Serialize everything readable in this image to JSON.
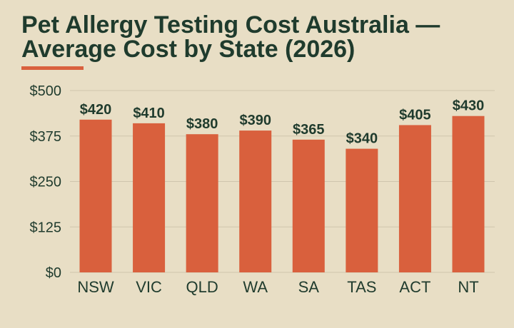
{
  "title_lines": [
    "Pet Allergy Testing Cost Australia —",
    "Average Cost by State (2026)"
  ],
  "colors": {
    "background": "#e8dec5",
    "bar": "#d9603d",
    "text": "#1f3b2d",
    "grid": "#cfc5ad",
    "accent": "#d9603d"
  },
  "chart_data": {
    "type": "bar",
    "title": "Pet Allergy Testing Cost Australia — Average Cost by State (2026)",
    "categories": [
      "NSW",
      "VIC",
      "QLD",
      "WA",
      "SA",
      "TAS",
      "ACT",
      "NT"
    ],
    "values": [
      420,
      410,
      380,
      390,
      365,
      340,
      405,
      430
    ],
    "data_labels": [
      "$420",
      "$410",
      "$380",
      "$390",
      "$365",
      "$340",
      "$405",
      "$430"
    ],
    "y_ticks": [
      0,
      125,
      250,
      375,
      500
    ],
    "y_tick_labels": [
      "$0",
      "$125",
      "$250",
      "$375",
      "$500"
    ],
    "ylim": [
      0,
      500
    ],
    "xlabel": "",
    "ylabel": "",
    "grid": true,
    "legend": "none"
  }
}
